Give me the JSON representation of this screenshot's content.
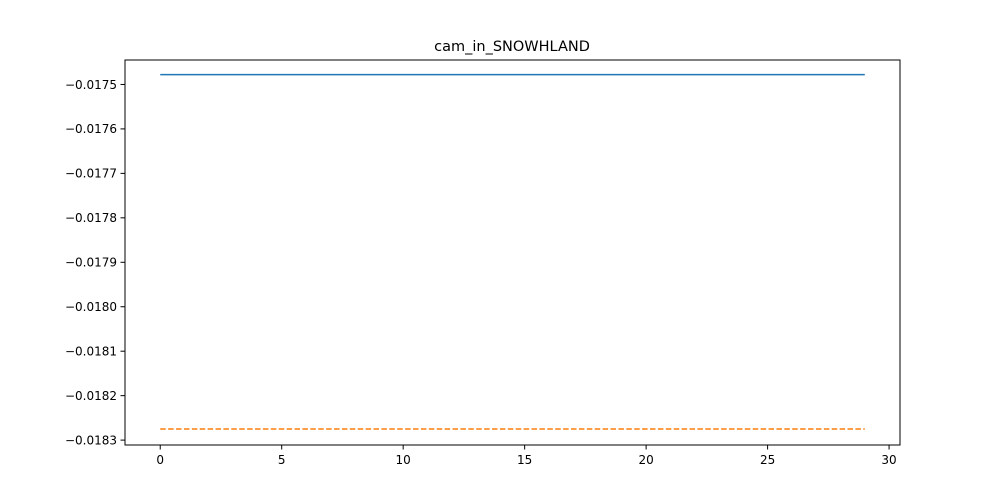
{
  "chart_data": {
    "type": "line",
    "title": "cam_in_SNOWHLAND",
    "xlabel": "",
    "ylabel": "",
    "xlim": [
      -1.45,
      30.45
    ],
    "ylim": [
      -0.018311,
      -0.017445
    ],
    "x_ticks": [
      0,
      5,
      10,
      15,
      20,
      25,
      30
    ],
    "x_tick_labels": [
      "0",
      "5",
      "10",
      "15",
      "20",
      "25",
      "30"
    ],
    "y_ticks": [
      -0.0175,
      -0.0176,
      -0.0177,
      -0.0178,
      -0.0179,
      -0.018,
      -0.0181,
      -0.0182,
      -0.0183
    ],
    "y_tick_labels": [
      "−0.0175",
      "−0.0176",
      "−0.0177",
      "−0.0178",
      "−0.0179",
      "−0.0180",
      "−0.0181",
      "−0.0182",
      "−0.0183"
    ],
    "grid": false,
    "series": [
      {
        "color": "#1f77b4",
        "style": "solid",
        "x": [
          0,
          29
        ],
        "y": [
          -0.017478,
          -0.017478
        ]
      },
      {
        "color": "#ff7f0e",
        "style": "dashed",
        "x": [
          0,
          29
        ],
        "y": [
          -0.018275,
          -0.018275
        ]
      }
    ]
  }
}
